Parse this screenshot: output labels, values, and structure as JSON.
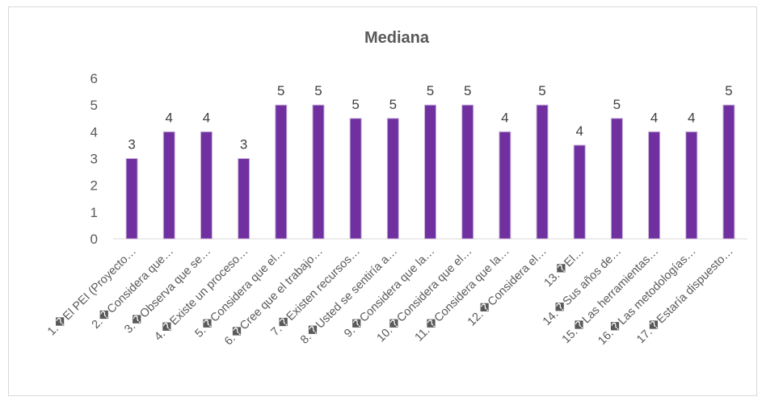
{
  "chart_data": {
    "type": "bar",
    "title": "Mediana",
    "xlabel": "",
    "ylabel": "",
    "ylim": [
      0,
      6
    ],
    "yticks": [
      0,
      1,
      2,
      3,
      4,
      5,
      6
    ],
    "grid": false,
    "legend": "none",
    "bar_color": "#7030a0",
    "bar_edge_color": "#c9b3d9",
    "categories": [
      "1.�El PEI (Proyecto…",
      "2.�Considera que…",
      "3.�Observa que se…",
      "4.�Existe un proceso…",
      "5.�Considera que el…",
      "6.�Cree que el trabajo…",
      "7.�Existen recursos…",
      "8.�Usted se sentiría a…",
      "9.�Considera que la…",
      "10.�Considera que el…",
      "11.�Considera que la…",
      "12.�Considera el…",
      "13.�El…",
      "14.�Sus años de…",
      "15.�Las herramientas…",
      "16.�Las metodologías…",
      "17.�Estaría dispuesto…"
    ],
    "values": [
      3,
      4,
      4,
      3,
      5,
      5,
      4.5,
      4.5,
      5,
      5,
      4,
      5,
      3.5,
      4.5,
      4,
      4,
      5
    ],
    "data_labels": [
      "3",
      "4",
      "4",
      "3",
      "5",
      "5",
      "5",
      "5",
      "5",
      "5",
      "4",
      "5",
      "4",
      "5",
      "4",
      "4",
      "5"
    ]
  }
}
